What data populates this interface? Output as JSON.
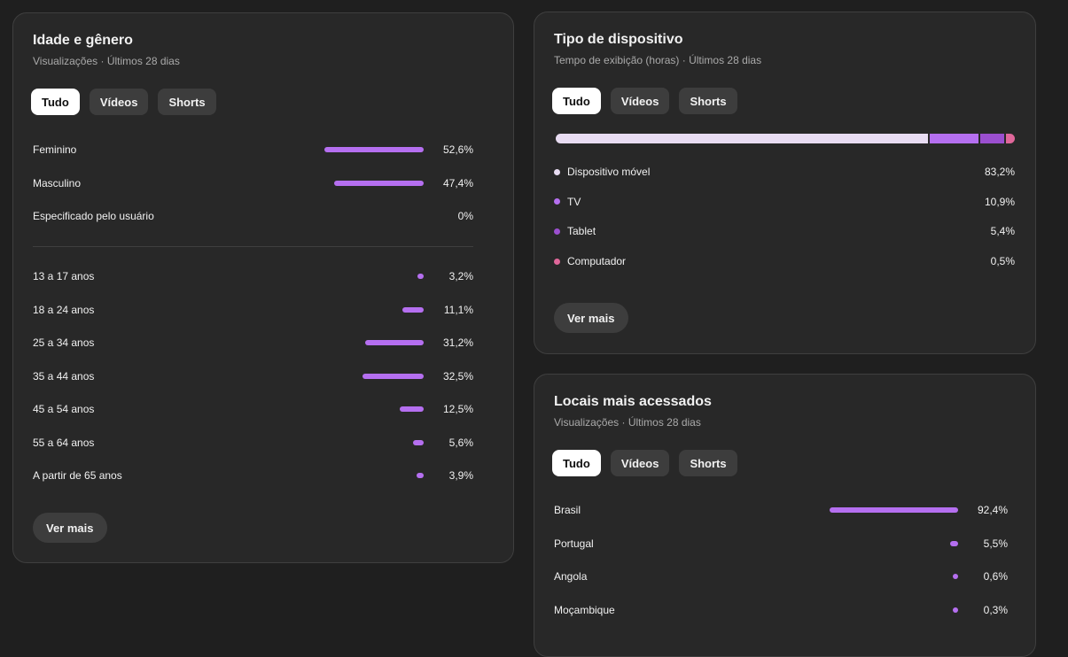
{
  "age_gender": {
    "title": "Idade e gênero",
    "subtitle": "Visualizações · Últimos 28 dias",
    "tabs": [
      "Tudo",
      "Vídeos",
      "Shorts"
    ],
    "gender": [
      {
        "label": "Feminino",
        "value": "52,6%",
        "pct": 52.6
      },
      {
        "label": "Masculino",
        "value": "47,4%",
        "pct": 47.4
      },
      {
        "label": "Especificado pelo usuário",
        "value": "0%",
        "pct": 0
      }
    ],
    "age": [
      {
        "label": "13 a 17 anos",
        "value": "3,2%",
        "pct": 3.2
      },
      {
        "label": "18 a 24 anos",
        "value": "11,1%",
        "pct": 11.1
      },
      {
        "label": "25 a 34 anos",
        "value": "31,2%",
        "pct": 31.2
      },
      {
        "label": "35 a 44 anos",
        "value": "32,5%",
        "pct": 32.5
      },
      {
        "label": "45 a 54 anos",
        "value": "12,5%",
        "pct": 12.5
      },
      {
        "label": "55 a 64 anos",
        "value": "5,6%",
        "pct": 5.6
      },
      {
        "label": "A partir de 65 anos",
        "value": "3,9%",
        "pct": 3.9
      }
    ],
    "more_label": "Ver mais"
  },
  "device": {
    "title": "Tipo de dispositivo",
    "subtitle": "Tempo de exibição (horas) · Últimos 28 dias",
    "tabs": [
      "Tudo",
      "Vídeos",
      "Shorts"
    ],
    "items": [
      {
        "label": "Dispositivo móvel",
        "value": "83,2%",
        "pct": 83.2,
        "color": "#e8dcf2"
      },
      {
        "label": "TV",
        "value": "10,9%",
        "pct": 10.9,
        "color": "#b56ff0"
      },
      {
        "label": "Tablet",
        "value": "5,4%",
        "pct": 5.4,
        "color": "#9b4fcf"
      },
      {
        "label": "Computador",
        "value": "0,5%",
        "pct": 0.5,
        "color": "#e0679a"
      }
    ],
    "more_label": "Ver mais"
  },
  "places": {
    "title": "Locais mais acessados",
    "subtitle": "Visualizações · Últimos 28 dias",
    "tabs": [
      "Tudo",
      "Vídeos",
      "Shorts"
    ],
    "items": [
      {
        "label": "Brasil",
        "value": "92,4%",
        "pct": 92.4
      },
      {
        "label": "Portugal",
        "value": "5,5%",
        "pct": 5.5
      },
      {
        "label": "Angola",
        "value": "0,6%",
        "pct": 0.6
      },
      {
        "label": "Moçambique",
        "value": "0,3%",
        "pct": 0.3
      }
    ]
  },
  "colors": {
    "accent": "#b56ff0",
    "card": "#282828",
    "background": "#1f1f1f"
  }
}
